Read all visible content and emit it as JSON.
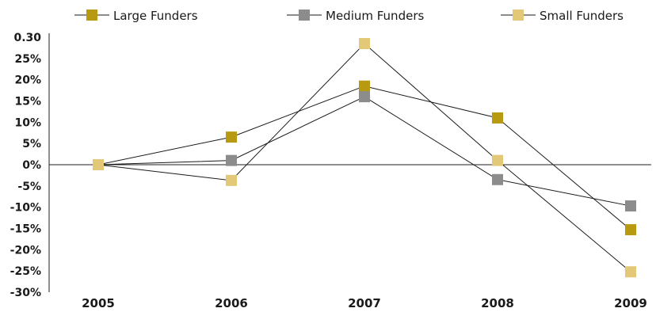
{
  "chart_data": {
    "type": "line",
    "title": "",
    "xlabel": "",
    "ylabel": "",
    "categories": [
      "2005",
      "2006",
      "2007",
      "2008",
      "2009"
    ],
    "y_tick_labels": [
      "0.30",
      "25%",
      "20%",
      "15%",
      "10%",
      "5%",
      "0%",
      "-5%",
      "-10%",
      "-15%",
      "-20%",
      "-25%",
      "-30%"
    ],
    "ylim": [
      -0.3,
      0.3
    ],
    "grid": false,
    "legend_position": "top",
    "series": [
      {
        "name": "Large Funders",
        "color": "#b89a12",
        "values": [
          0.0,
          0.065,
          0.185,
          0.11,
          -0.153
        ]
      },
      {
        "name": "Medium Funders",
        "color": "#8c8c8c",
        "values": [
          0.0,
          0.01,
          0.16,
          -0.035,
          -0.097
        ]
      },
      {
        "name": "Small Funders",
        "color": "#e3c878",
        "values": [
          0.0,
          -0.037,
          0.285,
          0.01,
          -0.252
        ]
      }
    ]
  }
}
